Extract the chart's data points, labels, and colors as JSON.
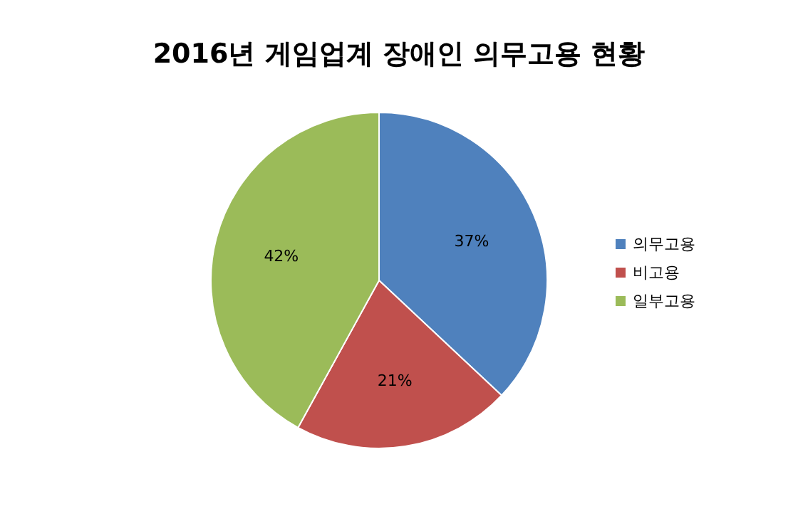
{
  "chart_data": {
    "type": "pie",
    "title": "2016년 게임업계 장애인 의무고용 현황",
    "categories": [
      "의무고용",
      "비고용",
      "일부고용"
    ],
    "values": [
      37,
      21,
      42
    ],
    "colors": [
      "#4f81bd",
      "#c0504d",
      "#9bbb59"
    ],
    "value_labels": [
      "37%",
      "21%",
      "42%"
    ],
    "legend": "right"
  }
}
